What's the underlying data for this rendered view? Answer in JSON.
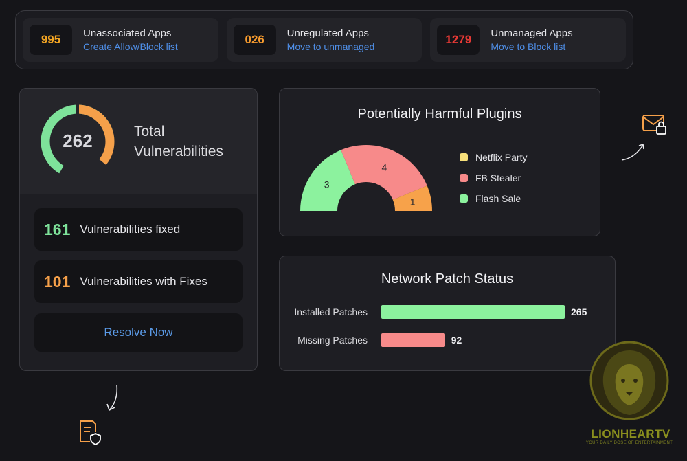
{
  "top_stats": [
    {
      "value": "995",
      "title": "Unassociated Apps",
      "link": "Create Allow/Block list",
      "color": "#f5a623"
    },
    {
      "value": "026",
      "title": "Unregulated Apps",
      "link": "Move to unmanaged",
      "color": "#f59a2e"
    },
    {
      "value": "1279",
      "title": "Unmanaged Apps",
      "link": "Move to Block list",
      "color": "#e53935"
    }
  ],
  "vulnerabilities": {
    "total": "262",
    "title_line1": "Total",
    "title_line2": "Vulnerabilities",
    "fixed_count": "161",
    "fixed_label": "Vulnerabilities fixed",
    "with_fixes_count": "101",
    "with_fixes_label": "Vulnerabilities with Fixes",
    "resolve_label": "Resolve Now",
    "fixed_color": "#7ee29a",
    "with_fixes_color": "#f5a04a"
  },
  "plugins": {
    "title": "Potentially Harmful Plugins",
    "chart_data": {
      "type": "pie",
      "style": "semi-donut",
      "slices": [
        {
          "label": "Flash Sale",
          "value": 3,
          "color": "#8cf29e"
        },
        {
          "label": "FB Stealer",
          "value": 4,
          "color": "#f78a8a"
        },
        {
          "label": "Netflix Party",
          "value": 1,
          "color": "#f7a24a"
        }
      ],
      "legend": [
        {
          "label": "Netflix Party",
          "color": "#f7e07a"
        },
        {
          "label": "FB Stealer",
          "color": "#f78a8a"
        },
        {
          "label": "Flash Sale",
          "color": "#8cf29e"
        }
      ],
      "legend_position": "right"
    }
  },
  "patch_status": {
    "title": "Network Patch Status",
    "chart_data": {
      "type": "bar",
      "orientation": "horizontal",
      "categories": [
        "Installed Patches",
        "Missing Patches"
      ],
      "values": [
        265,
        92
      ],
      "colors": [
        "#8cf29e",
        "#f78a8a"
      ]
    }
  },
  "icons": {
    "mail_lock": "mail-lock-icon",
    "doc_shield": "document-shield-icon",
    "accent": "#f5a04a"
  },
  "watermark": {
    "name": "LIONHEARTV",
    "tagline": "YOUR DAILY DOSE OF ENTERTAINMENT"
  }
}
